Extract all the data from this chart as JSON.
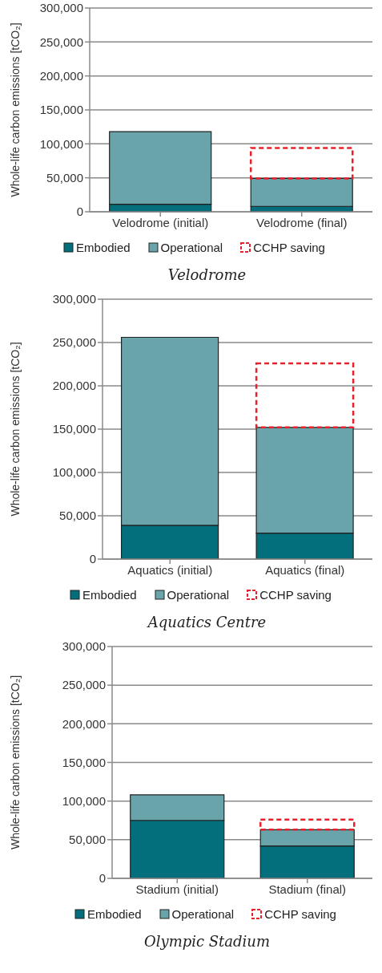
{
  "chart_data": [
    {
      "type": "bar",
      "title": "Velodrome",
      "ylabel": "Whole-life carbon emissions [tCO₂]",
      "categories": [
        "Velodrome (initial)",
        "Velodrome (final)"
      ],
      "stacked": true,
      "ylim": [
        0,
        300000
      ],
      "yticks": [
        {
          "value": 0,
          "label": "0"
        },
        {
          "value": 50000,
          "label": "50,000"
        },
        {
          "value": 100000,
          "label": "100,000"
        },
        {
          "value": 150000,
          "label": "150,000"
        },
        {
          "value": 200000,
          "label": "200,000"
        },
        {
          "value": 250000,
          "label": "250,000"
        },
        {
          "value": 300000,
          "label": "300,000"
        }
      ],
      "grid": "y",
      "legend": "bottom",
      "series": [
        {
          "name": "Embodied",
          "color": "#036f7d",
          "values": [
            11000,
            8000
          ]
        },
        {
          "name": "Operational",
          "color": "#68a4aa",
          "values": [
            107000,
            41000
          ]
        },
        {
          "name": "CCHP saving",
          "color": "#e8202a",
          "line_style": "dashed",
          "values": [
            null,
            45000
          ]
        }
      ]
    },
    {
      "type": "bar",
      "title": "Aquatics Centre",
      "ylabel": "Whole-life carbon emissions [tCO₂]",
      "categories": [
        "Aquatics (initial)",
        "Aquatics (final)"
      ],
      "stacked": true,
      "ylim": [
        0,
        300000
      ],
      "yticks": [
        {
          "value": 0,
          "label": "0"
        },
        {
          "value": 50000,
          "label": "50,000"
        },
        {
          "value": 100000,
          "label": "100,000"
        },
        {
          "value": 150000,
          "label": "150,000"
        },
        {
          "value": 200000,
          "label": "200,000"
        },
        {
          "value": 250000,
          "label": "250,000"
        },
        {
          "value": 300000,
          "label": "300,000"
        }
      ],
      "grid": "y",
      "legend": "bottom",
      "series": [
        {
          "name": "Embodied",
          "color": "#036f7d",
          "values": [
            39000,
            30000
          ]
        },
        {
          "name": "Operational",
          "color": "#68a4aa",
          "values": [
            217000,
            122000
          ]
        },
        {
          "name": "CCHP saving",
          "color": "#e8202a",
          "line_style": "dashed",
          "values": [
            null,
            74000
          ]
        }
      ]
    },
    {
      "type": "bar",
      "title": "Olympic Stadium",
      "ylabel": "Whole-life carbon emissions [tCO₂]",
      "categories": [
        "Stadium (initial)",
        "Stadium (final)"
      ],
      "stacked": true,
      "ylim": [
        0,
        300000
      ],
      "yticks": [
        {
          "value": 0,
          "label": "0"
        },
        {
          "value": 50000,
          "label": "50,000"
        },
        {
          "value": 100000,
          "label": "100,000"
        },
        {
          "value": 150000,
          "label": "150,000"
        },
        {
          "value": 200000,
          "label": "200,000"
        },
        {
          "value": 250000,
          "label": "250,000"
        },
        {
          "value": 300000,
          "label": "300,000"
        }
      ],
      "grid": "y",
      "legend": "bottom",
      "series": [
        {
          "name": "Embodied",
          "color": "#036f7d",
          "values": [
            75000,
            42000
          ]
        },
        {
          "name": "Operational",
          "color": "#68a4aa",
          "values": [
            33000,
            21000
          ]
        },
        {
          "name": "CCHP saving",
          "color": "#e8202a",
          "line_style": "dashed",
          "values": [
            null,
            13000
          ]
        }
      ]
    }
  ]
}
